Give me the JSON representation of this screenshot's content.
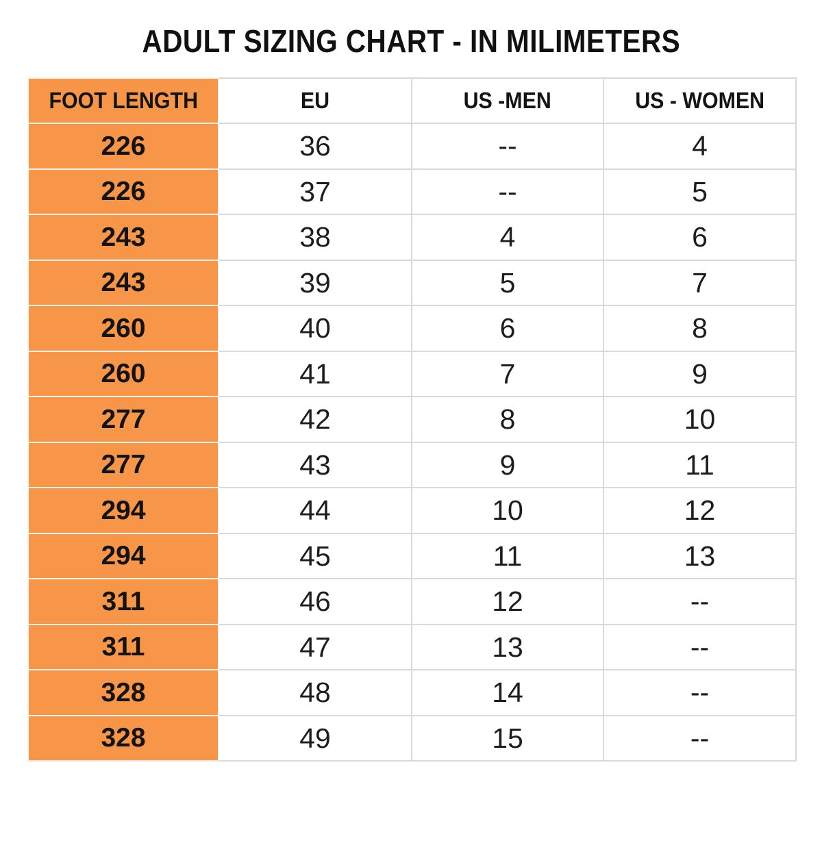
{
  "title": "ADULT SIZING CHART - IN MILIMETERS",
  "table": {
    "headers": [
      "FOOT LENGTH",
      "EU",
      "US -MEN",
      "US - WOMEN"
    ],
    "column_names": [
      "foot-length-cell",
      "eu-cell",
      "us-men-cell",
      "us-women-cell"
    ],
    "rows": [
      [
        "226",
        "36",
        "--",
        "4"
      ],
      [
        "226",
        "37",
        "--",
        "5"
      ],
      [
        "243",
        "38",
        "4",
        "6"
      ],
      [
        "243",
        "39",
        "5",
        "7"
      ],
      [
        "260",
        "40",
        "6",
        "8"
      ],
      [
        "260",
        "41",
        "7",
        "9"
      ],
      [
        "277",
        "42",
        "8",
        "10"
      ],
      [
        "277",
        "43",
        "9",
        "11"
      ],
      [
        "294",
        "44",
        "10",
        "12"
      ],
      [
        "294",
        "45",
        "11",
        "13"
      ],
      [
        "311",
        "46",
        "12",
        "--"
      ],
      [
        "311",
        "47",
        "13",
        "--"
      ],
      [
        "328",
        "48",
        "14",
        "--"
      ],
      [
        "328",
        "49",
        "15",
        "--"
      ]
    ]
  },
  "colors": {
    "accent_orange": "#F79648",
    "grid_line": "#D9D9D9",
    "orange_divider": "#FAF3EB",
    "text": "#1A1A1A"
  }
}
